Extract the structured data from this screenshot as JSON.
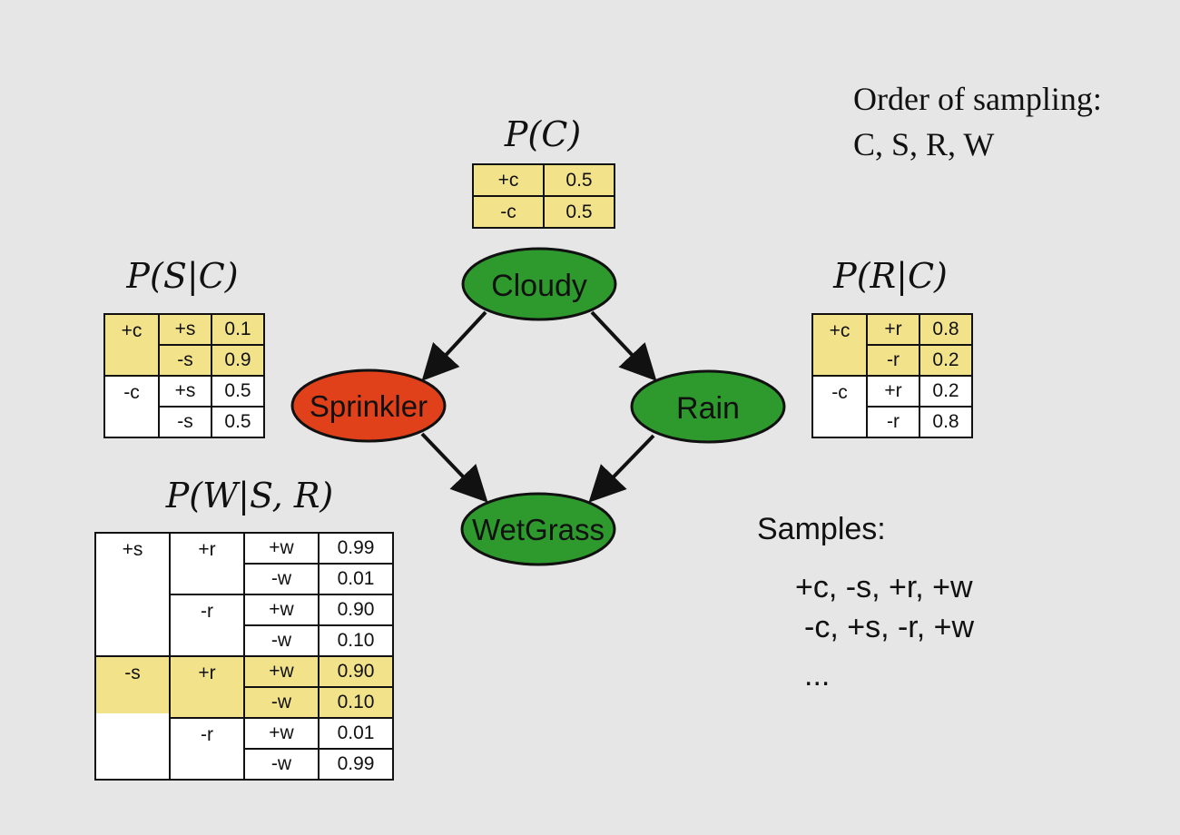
{
  "order": {
    "line1": "Order of sampling:",
    "line2": "C, S, R, W"
  },
  "nodes": {
    "cloudy": "Cloudy",
    "sprinkler": "Sprinkler",
    "rain": "Rain",
    "wetgrass": "WetGrass"
  },
  "pc": {
    "title": "P(C)",
    "rows": [
      {
        "c": "+c",
        "p": "0.5"
      },
      {
        "c": "-c",
        "p": "0.5"
      }
    ]
  },
  "psc": {
    "title": "P(S|C)",
    "groups": [
      {
        "c": "+c",
        "rows": [
          {
            "s": "+s",
            "p": "0.1"
          },
          {
            "s": "-s",
            "p": "0.9"
          }
        ]
      },
      {
        "c": "-c",
        "rows": [
          {
            "s": "+s",
            "p": "0.5"
          },
          {
            "s": "-s",
            "p": "0.5"
          }
        ]
      }
    ]
  },
  "prc": {
    "title": "P(R|C)",
    "groups": [
      {
        "c": "+c",
        "rows": [
          {
            "r": "+r",
            "p": "0.8"
          },
          {
            "r": "-r",
            "p": "0.2"
          }
        ]
      },
      {
        "c": "-c",
        "rows": [
          {
            "r": "+r",
            "p": "0.2"
          },
          {
            "r": "-r",
            "p": "0.8"
          }
        ]
      }
    ]
  },
  "pwsr": {
    "title": "P(W|S, R)",
    "groups": [
      {
        "s": "+s",
        "sub": [
          {
            "r": "+r",
            "rows": [
              {
                "w": "+w",
                "p": "0.99"
              },
              {
                "w": "-w",
                "p": "0.01"
              }
            ]
          },
          {
            "r": "-r",
            "rows": [
              {
                "w": "+w",
                "p": "0.90"
              },
              {
                "w": "-w",
                "p": "0.10"
              }
            ]
          }
        ]
      },
      {
        "s": "-s",
        "sub": [
          {
            "r": "+r",
            "rows": [
              {
                "w": "+w",
                "p": "0.90"
              },
              {
                "w": "-w",
                "p": "0.10"
              }
            ]
          },
          {
            "r": "-r",
            "rows": [
              {
                "w": "+w",
                "p": "0.01"
              },
              {
                "w": "-w",
                "p": "0.99"
              }
            ]
          }
        ]
      }
    ]
  },
  "samples": {
    "title": "Samples:",
    "lines": [
      "+c, -s, +r, +w",
      "-c, +s, -r, +w",
      "..."
    ]
  },
  "colors": {
    "highlight": "#f2e38a",
    "node_green": "#2e9a2e",
    "node_red": "#e0401a",
    "background": "#e6e6e6"
  }
}
